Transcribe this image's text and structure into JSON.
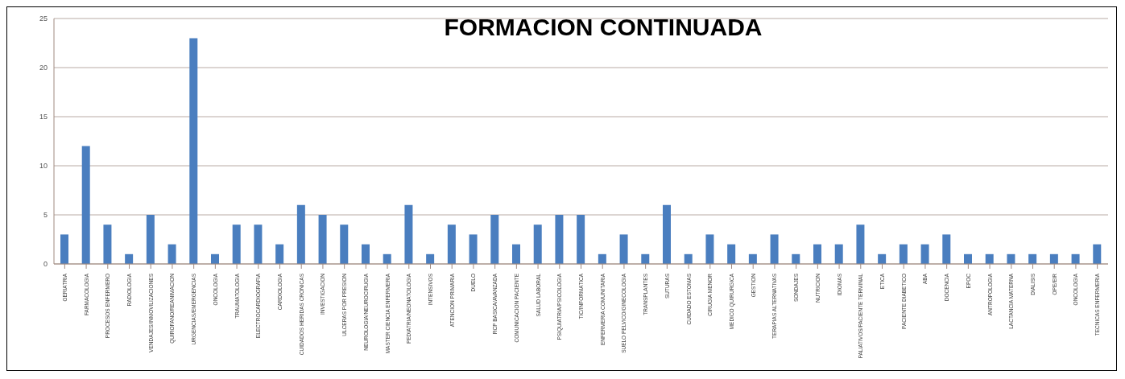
{
  "chart_data": {
    "type": "bar",
    "title": "FORMACION CONTINUADA",
    "categories": [
      "GERIATRIA",
      "FARMACOLOGIA",
      "PROCESOS ENFERMERO",
      "RADIOLOGIA",
      "VENDAJES/INMOVILIZACIONES",
      "QUIROFANO/REANIMACION",
      "URGENCIAS/EMERGENCIAS",
      "ONCOLOGIA",
      "TRAUMATOLOGIA",
      "ELECTROCARDIOGRAFIA",
      "CARDIOLOGIA",
      "CUIDADOS HERIDAS CRONICAS",
      "INVESTIGACION",
      "ULCERAS POR PRESION",
      "NEUROLOGIA/NEUROCIRUGIA",
      "MASTER CIENCIA ENFERMERIA",
      "PEDIATRIA/NEONATOLOGIA",
      "INTENSIVOS",
      "ATENCION PRIMARIA",
      "DUELO",
      "RCP BASICA/AVANZADA",
      "COMUNICACION PACIENTE",
      "SALUD LABORAL",
      "PSIQUIATRIA/PSICOLOGIA",
      "TIC/INFORMATICA",
      "ENFERMERIA COMUNITARIA",
      "SUELO PELVICO/GINECOLOGIA",
      "TRANSPLANTES",
      "SUTURAS",
      "CUIDADO ESTOMAS",
      "CIRUGIA MENOR",
      "MEDICO QUIRURGICA",
      "GESTION",
      "TERAPIAS ALTERNATIVAS",
      "SONDAJES",
      "NUTRICION",
      "IDIOMAS",
      "PALIATIVOS/PACIENTE TERMINAL",
      "ETICA",
      "PACIENTE DIABETICO",
      "ABA",
      "DOCENCIA",
      "EPOC",
      "ANTROPOLOGIA",
      "LACTANCIA MATERNA",
      "DIALISIS",
      "OPE/EIR",
      "ONCOLOGIA",
      "TECNICAS ENFERMERIA"
    ],
    "values": [
      3,
      12,
      4,
      1,
      5,
      2,
      23,
      1,
      4,
      4,
      2,
      6,
      5,
      4,
      2,
      1,
      6,
      1,
      4,
      3,
      5,
      2,
      4,
      5,
      5,
      1,
      3,
      1,
      6,
      1,
      3,
      2,
      1,
      3,
      1,
      2,
      2,
      4,
      1,
      2,
      2,
      3,
      1,
      1,
      1,
      1,
      1,
      1,
      2
    ],
    "color": "#4a7ebf",
    "ylim": [
      0,
      25
    ],
    "yticks": [
      0,
      5,
      10,
      15,
      20,
      25
    ],
    "grid": "y",
    "legend": false
  }
}
